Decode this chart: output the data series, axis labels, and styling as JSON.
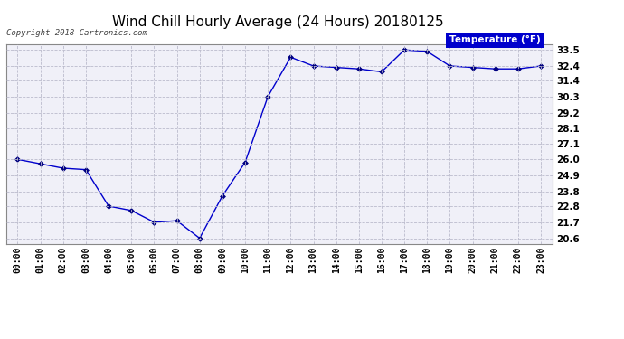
{
  "title": "Wind Chill Hourly Average (24 Hours) 20180125",
  "copyright": "Copyright 2018 Cartronics.com",
  "legend_label": "Temperature (°F)",
  "x_labels": [
    "00:00",
    "01:00",
    "02:00",
    "03:00",
    "04:00",
    "05:00",
    "06:00",
    "07:00",
    "08:00",
    "09:00",
    "10:00",
    "11:00",
    "12:00",
    "13:00",
    "14:00",
    "15:00",
    "16:00",
    "17:00",
    "18:00",
    "19:00",
    "20:00",
    "21:00",
    "22:00",
    "23:00"
  ],
  "y_values": [
    26.0,
    25.7,
    25.4,
    25.3,
    22.8,
    22.5,
    21.7,
    21.8,
    20.6,
    23.5,
    25.8,
    30.3,
    33.0,
    32.4,
    32.3,
    32.2,
    32.0,
    33.5,
    33.4,
    32.4,
    32.3,
    32.2,
    32.2,
    32.4
  ],
  "y_ticks": [
    20.6,
    21.7,
    22.8,
    23.8,
    24.9,
    26.0,
    27.1,
    28.1,
    29.2,
    30.3,
    31.4,
    32.4,
    33.5
  ],
  "ylim": [
    20.2,
    33.9
  ],
  "line_color": "#0000cc",
  "marker_color": "#000080",
  "bg_color": "#ffffff",
  "plot_bg_color": "#f0f0f8",
  "grid_color": "#bbbbcc",
  "title_fontsize": 11,
  "legend_bg_color": "#0000cc",
  "legend_text_color": "#ffffff"
}
